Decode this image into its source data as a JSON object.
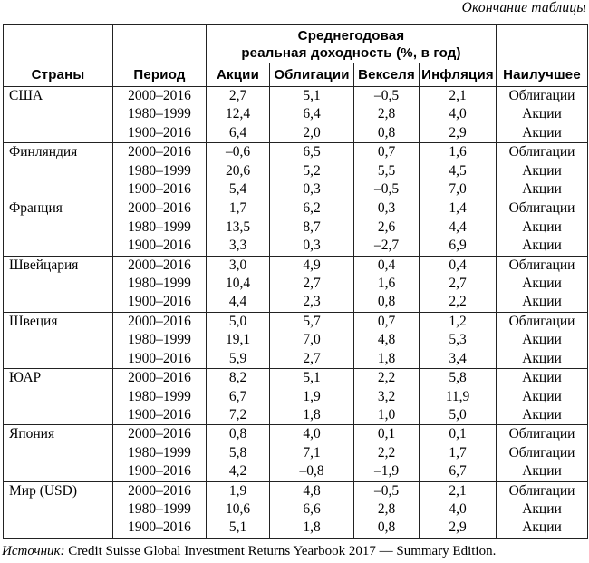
{
  "page": {
    "continuation_note": "Окончание таблицы",
    "source": {
      "prefix": "Источник:",
      "text": " Credit Suisse Global Investment Returns Yearbook 2017 — Summary Edition."
    }
  },
  "table": {
    "span_header": {
      "line1": "Среднегодовая",
      "line2": "реальная доходность (%, в год)"
    },
    "columns": [
      "Страны",
      "Период",
      "Акции",
      "Облигации",
      "Векселя",
      "Инфляция",
      "Наилучшее"
    ],
    "groups": [
      {
        "country": "США",
        "rows": [
          {
            "period": "2000–2016",
            "values": [
              "2,7",
              "5,1",
              "–0,5",
              "2,1"
            ],
            "best": "Облигации"
          },
          {
            "period": "1980–1999",
            "values": [
              "12,4",
              "6,4",
              "2,8",
              "4,0"
            ],
            "best": "Акции"
          },
          {
            "period": "1900–2016",
            "values": [
              "6,4",
              "2,0",
              "0,8",
              "2,9"
            ],
            "best": "Акции"
          }
        ]
      },
      {
        "country": "Финляндия",
        "rows": [
          {
            "period": "2000–2016",
            "values": [
              "–0,6",
              "6,5",
              "0,7",
              "1,6"
            ],
            "best": "Облигации"
          },
          {
            "period": "1980–1999",
            "values": [
              "20,6",
              "5,2",
              "5,5",
              "4,5"
            ],
            "best": "Акции"
          },
          {
            "period": "1900–2016",
            "values": [
              "5,4",
              "0,3",
              "–0,5",
              "7,0"
            ],
            "best": "Акции"
          }
        ]
      },
      {
        "country": "Франция",
        "rows": [
          {
            "period": "2000–2016",
            "values": [
              "1,7",
              "6,2",
              "0,3",
              "1,4"
            ],
            "best": "Облигации"
          },
          {
            "period": "1980–1999",
            "values": [
              "13,5",
              "8,7",
              "2,6",
              "4,4"
            ],
            "best": "Акции"
          },
          {
            "period": "1900–2016",
            "values": [
              "3,3",
              "0,3",
              "–2,7",
              "6,9"
            ],
            "best": "Акции"
          }
        ]
      },
      {
        "country": "Швейцария",
        "rows": [
          {
            "period": "2000–2016",
            "values": [
              "3,0",
              "4,9",
              "0,4",
              "0,4"
            ],
            "best": "Облигации"
          },
          {
            "period": "1980–1999",
            "values": [
              "10,4",
              "2,7",
              "1,6",
              "2,7"
            ],
            "best": "Акции"
          },
          {
            "period": "1900–2016",
            "values": [
              "4,4",
              "2,3",
              "0,8",
              "2,2"
            ],
            "best": "Акции"
          }
        ]
      },
      {
        "country": "Швеция",
        "rows": [
          {
            "period": "2000–2016",
            "values": [
              "5,0",
              "5,7",
              "0,7",
              "1,2"
            ],
            "best": "Облигации"
          },
          {
            "period": "1980–1999",
            "values": [
              "19,1",
              "7,0",
              "4,8",
              "5,3"
            ],
            "best": "Акции"
          },
          {
            "period": "1900–2016",
            "values": [
              "5,9",
              "2,7",
              "1,8",
              "3,4"
            ],
            "best": "Акции"
          }
        ]
      },
      {
        "country": "ЮАР",
        "rows": [
          {
            "period": "2000–2016",
            "values": [
              "8,2",
              "5,1",
              "2,2",
              "5,8"
            ],
            "best": "Акции"
          },
          {
            "period": "1980–1999",
            "values": [
              "6,7",
              "1,9",
              "3,2",
              "11,9"
            ],
            "best": "Акции"
          },
          {
            "period": "1900–2016",
            "values": [
              "7,2",
              "1,8",
              "1,0",
              "5,0"
            ],
            "best": "Акции"
          }
        ]
      },
      {
        "country": "Япония",
        "rows": [
          {
            "period": "2000–2016",
            "values": [
              "0,8",
              "4,0",
              "0,1",
              "0,1"
            ],
            "best": "Облигации"
          },
          {
            "period": "1980–1999",
            "values": [
              "5,8",
              "7,1",
              "2,2",
              "1,7"
            ],
            "best": "Облигации"
          },
          {
            "period": "1900–2016",
            "values": [
              "4,2",
              "–0,8",
              "–1,9",
              "6,7"
            ],
            "best": "Акции"
          }
        ]
      },
      {
        "country": "Мир (USD)",
        "rows": [
          {
            "period": "2000–2016",
            "values": [
              "1,9",
              "4,8",
              "–0,5",
              "2,1"
            ],
            "best": "Облигации"
          },
          {
            "period": "1980–1999",
            "values": [
              "10,6",
              "6,6",
              "2,8",
              "4,0"
            ],
            "best": "Акции"
          },
          {
            "period": "1900–2016",
            "values": [
              "5,1",
              "1,8",
              "0,8",
              "2,9"
            ],
            "best": "Акции"
          }
        ]
      }
    ]
  }
}
